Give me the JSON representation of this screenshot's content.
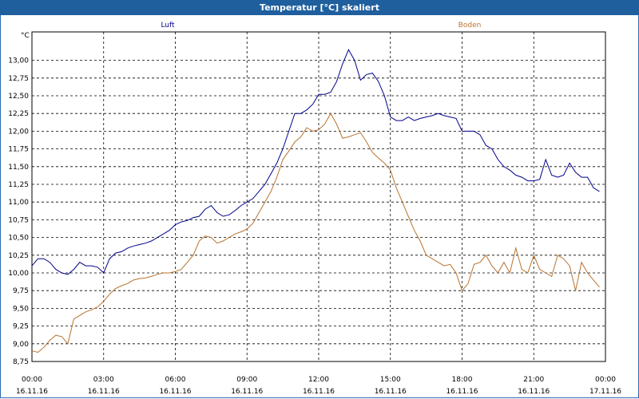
{
  "window": {
    "title": "Temperatur [°C] skaliert"
  },
  "chart_data": {
    "type": "line",
    "title": "Temperatur [°C] skaliert",
    "ylabel": "°C",
    "xlabel": "",
    "ylim": [
      8.75,
      13.0
    ],
    "xlim": [
      0,
      24
    ],
    "grid": true,
    "legend": "top",
    "y_ticks": [
      "8,75",
      "9,00",
      "9,25",
      "9,50",
      "9,75",
      "10,00",
      "10,25",
      "10,50",
      "10,75",
      "11,00",
      "11,25",
      "11,50",
      "11,75",
      "12,00",
      "12,25",
      "12,50",
      "12,75",
      "13,00"
    ],
    "x_ticks": [
      {
        "time": "00:00",
        "date": "16.11.16"
      },
      {
        "time": "03:00",
        "date": "16.11.16"
      },
      {
        "time": "06:00",
        "date": "16.11.16"
      },
      {
        "time": "09:00",
        "date": "16.11.16"
      },
      {
        "time": "12:00",
        "date": "16.11.16"
      },
      {
        "time": "15:00",
        "date": "16.11.16"
      },
      {
        "time": "18:00",
        "date": "16.11.16"
      },
      {
        "time": "21:00",
        "date": "16.11.16"
      },
      {
        "time": "00:00",
        "date": "17.11.16"
      }
    ],
    "series": [
      {
        "name": "Luft",
        "color": "#00008b",
        "x": [
          0,
          0.25,
          0.5,
          0.75,
          1.0,
          1.25,
          1.5,
          1.75,
          2.0,
          2.25,
          2.5,
          2.75,
          3.0,
          3.25,
          3.5,
          3.75,
          4.0,
          4.25,
          4.5,
          4.75,
          5.0,
          5.25,
          5.5,
          5.75,
          6.0,
          6.25,
          6.5,
          6.75,
          7.0,
          7.25,
          7.5,
          7.75,
          8.0,
          8.25,
          8.5,
          8.75,
          9.0,
          9.25,
          9.5,
          9.75,
          10.0,
          10.25,
          10.5,
          10.75,
          11.0,
          11.25,
          11.5,
          11.75,
          12.0,
          12.25,
          12.5,
          12.75,
          13.0,
          13.25,
          13.5,
          13.75,
          14.0,
          14.25,
          14.5,
          14.75,
          15.0,
          15.25,
          15.5,
          15.75,
          16.0,
          16.25,
          16.5,
          16.75,
          17.0,
          17.25,
          17.5,
          17.75,
          18.0,
          18.25,
          18.5,
          18.75,
          19.0,
          19.25,
          19.5,
          19.75,
          20.0,
          20.25,
          20.5,
          20.75,
          21.0,
          21.25,
          21.5,
          21.75,
          22.0,
          22.25,
          22.5,
          22.75,
          23.0,
          23.25,
          23.5,
          23.75
        ],
        "values": [
          10.1,
          10.2,
          10.2,
          10.15,
          10.05,
          10.0,
          9.98,
          10.05,
          10.15,
          10.1,
          10.1,
          10.08,
          10.0,
          10.2,
          10.28,
          10.3,
          10.35,
          10.38,
          10.4,
          10.42,
          10.45,
          10.5,
          10.55,
          10.6,
          10.68,
          10.72,
          10.74,
          10.78,
          10.8,
          10.9,
          10.95,
          10.85,
          10.8,
          10.82,
          10.88,
          10.95,
          11.0,
          11.05,
          11.15,
          11.25,
          11.4,
          11.55,
          11.75,
          12.0,
          12.25,
          12.25,
          12.3,
          12.38,
          12.52,
          12.52,
          12.55,
          12.7,
          12.95,
          13.15,
          13.0,
          12.72,
          12.8,
          12.82,
          12.7,
          12.5,
          12.2,
          12.15,
          12.15,
          12.2,
          12.15,
          12.18,
          12.2,
          12.22,
          12.25,
          12.22,
          12.2,
          12.18,
          12.0,
          12.0,
          12.0,
          11.95,
          11.8,
          11.75,
          11.6,
          11.5,
          11.45,
          11.38,
          11.35,
          11.3,
          11.3,
          11.32,
          11.6,
          11.38,
          11.35,
          11.38,
          11.55,
          11.42,
          11.35,
          11.35,
          11.2,
          11.15
        ]
      },
      {
        "name": "Boden",
        "color": "#b8732e",
        "x": [
          0,
          0.25,
          0.5,
          0.75,
          1.0,
          1.25,
          1.5,
          1.75,
          2.0,
          2.25,
          2.5,
          2.75,
          3.0,
          3.25,
          3.5,
          3.75,
          4.0,
          4.25,
          4.5,
          4.75,
          5.0,
          5.25,
          5.5,
          5.75,
          6.0,
          6.25,
          6.5,
          6.75,
          7.0,
          7.25,
          7.5,
          7.75,
          8.0,
          8.25,
          8.5,
          8.75,
          9.0,
          9.25,
          9.5,
          9.75,
          10.0,
          10.25,
          10.5,
          10.75,
          11.0,
          11.25,
          11.5,
          11.75,
          12.0,
          12.25,
          12.5,
          12.75,
          13.0,
          13.25,
          13.5,
          13.75,
          14.0,
          14.25,
          14.5,
          14.75,
          15.0,
          15.25,
          15.5,
          15.75,
          16.0,
          16.25,
          16.5,
          16.75,
          17.0,
          17.25,
          17.5,
          17.75,
          18.0,
          18.25,
          18.5,
          18.75,
          19.0,
          19.25,
          19.5,
          19.75,
          20.0,
          20.25,
          20.5,
          20.75,
          21.0,
          21.25,
          21.5,
          21.75,
          22.0,
          22.25,
          22.5,
          22.75,
          23.0,
          23.25,
          23.5,
          23.75
        ],
        "values": [
          8.9,
          8.88,
          8.95,
          9.05,
          9.12,
          9.1,
          9.0,
          9.35,
          9.4,
          9.45,
          9.48,
          9.52,
          9.6,
          9.7,
          9.78,
          9.82,
          9.85,
          9.9,
          9.92,
          9.93,
          9.95,
          9.98,
          10.0,
          10.0,
          10.02,
          10.05,
          10.15,
          10.25,
          10.45,
          10.52,
          10.5,
          10.42,
          10.45,
          10.5,
          10.55,
          10.58,
          10.62,
          10.7,
          10.85,
          11.0,
          11.15,
          11.35,
          11.6,
          11.72,
          11.85,
          11.92,
          12.05,
          12.0,
          12.02,
          12.1,
          12.25,
          12.1,
          11.9,
          11.92,
          11.95,
          11.98,
          11.85,
          11.7,
          11.62,
          11.55,
          11.45,
          11.2,
          11.0,
          10.8,
          10.6,
          10.45,
          10.25,
          10.2,
          10.15,
          10.1,
          10.12,
          10.0,
          9.75,
          9.85,
          10.12,
          10.15,
          10.25,
          10.1,
          10.0,
          10.15,
          10.0,
          10.35,
          10.05,
          10.0,
          10.25,
          10.05,
          10.0,
          9.95,
          10.25,
          10.2,
          10.1,
          9.75,
          10.15,
          10.0,
          9.9,
          9.8
        ]
      }
    ]
  }
}
